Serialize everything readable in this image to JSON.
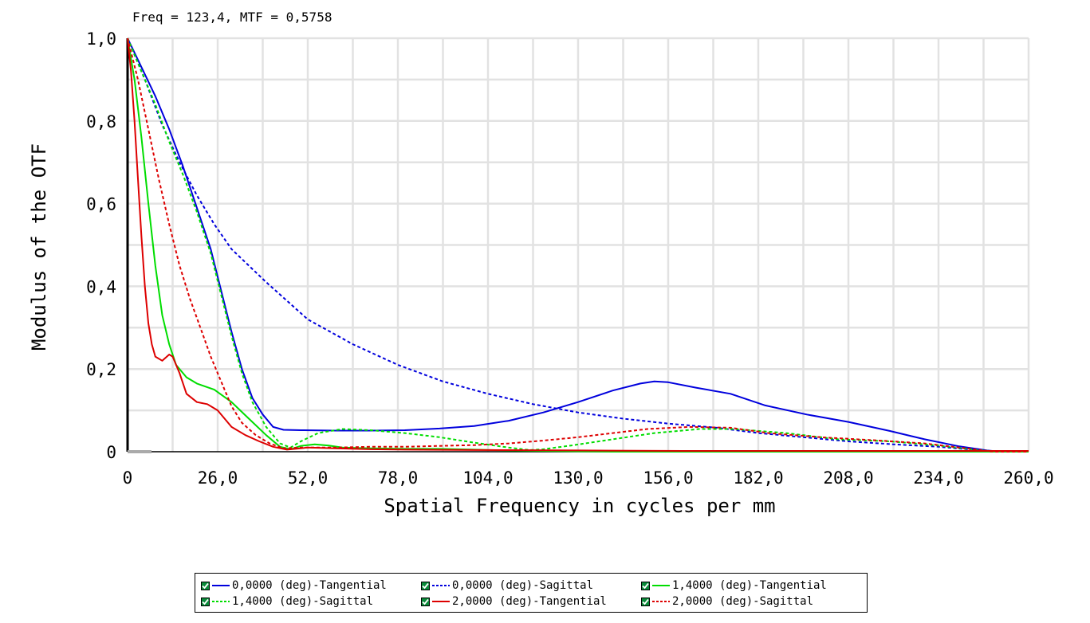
{
  "cursor_readout": "Freq = 123,4, MTF = 0,5758",
  "chart_data": {
    "type": "line",
    "title": "",
    "xlabel": "Spatial Frequency in cycles per mm",
    "ylabel": "Modulus of the OTF",
    "xlim": [
      0,
      260
    ],
    "ylim": [
      0,
      1
    ],
    "x_ticks": [
      0,
      26,
      52,
      78,
      104,
      130,
      156,
      182,
      208,
      234,
      260
    ],
    "x_tick_labels": [
      "0",
      "26,0",
      "52,0",
      "78,0",
      "104,0",
      "130,0",
      "156,0",
      "182,0",
      "208,0",
      "234,0",
      "260,0"
    ],
    "y_ticks": [
      0,
      0.2,
      0.4,
      0.6,
      0.8,
      1.0
    ],
    "y_tick_labels": [
      "0",
      "0,2",
      "0,4",
      "0,6",
      "0,8",
      "1,0"
    ],
    "grid": true,
    "legend_position": "bottom",
    "series": [
      {
        "name": "0,0000 (deg)-Tangential",
        "color": "#0000dd",
        "dash": false,
        "points": [
          [
            0,
            1.0
          ],
          [
            4,
            0.93
          ],
          [
            8,
            0.86
          ],
          [
            12,
            0.78
          ],
          [
            16,
            0.69
          ],
          [
            20,
            0.59
          ],
          [
            24,
            0.49
          ],
          [
            27,
            0.39
          ],
          [
            30,
            0.29
          ],
          [
            33,
            0.2
          ],
          [
            36,
            0.13
          ],
          [
            39,
            0.09
          ],
          [
            42,
            0.06
          ],
          [
            45,
            0.053
          ],
          [
            50,
            0.052
          ],
          [
            60,
            0.051
          ],
          [
            70,
            0.051
          ],
          [
            80,
            0.052
          ],
          [
            90,
            0.056
          ],
          [
            100,
            0.062
          ],
          [
            110,
            0.075
          ],
          [
            120,
            0.095
          ],
          [
            130,
            0.12
          ],
          [
            140,
            0.148
          ],
          [
            148,
            0.165
          ],
          [
            152,
            0.17
          ],
          [
            156,
            0.168
          ],
          [
            164,
            0.155
          ],
          [
            174,
            0.14
          ],
          [
            184,
            0.112
          ],
          [
            196,
            0.09
          ],
          [
            208,
            0.072
          ],
          [
            220,
            0.05
          ],
          [
            230,
            0.03
          ],
          [
            240,
            0.013
          ],
          [
            248,
            0.003
          ],
          [
            252,
            0
          ],
          [
            260,
            0
          ]
        ]
      },
      {
        "name": "0,0000 (deg)-Sagittal",
        "color": "#0000dd",
        "dash": true,
        "points": [
          [
            0,
            1.0
          ],
          [
            5,
            0.9
          ],
          [
            10,
            0.79
          ],
          [
            15,
            0.7
          ],
          [
            20,
            0.62
          ],
          [
            25,
            0.55
          ],
          [
            30,
            0.49
          ],
          [
            40,
            0.41
          ],
          [
            52,
            0.32
          ],
          [
            65,
            0.26
          ],
          [
            78,
            0.21
          ],
          [
            91,
            0.17
          ],
          [
            104,
            0.14
          ],
          [
            117,
            0.115
          ],
          [
            130,
            0.095
          ],
          [
            143,
            0.08
          ],
          [
            156,
            0.068
          ],
          [
            170,
            0.058
          ],
          [
            182,
            0.045
          ],
          [
            195,
            0.035
          ],
          [
            208,
            0.025
          ],
          [
            221,
            0.018
          ],
          [
            234,
            0.012
          ],
          [
            245,
            0.004
          ],
          [
            250,
            0
          ],
          [
            260,
            0
          ]
        ]
      },
      {
        "name": "1,4000 (deg)-Tangential",
        "color": "#00dd00",
        "dash": false,
        "points": [
          [
            0,
            1.0
          ],
          [
            2,
            0.9
          ],
          [
            4,
            0.76
          ],
          [
            6,
            0.6
          ],
          [
            8,
            0.45
          ],
          [
            10,
            0.33
          ],
          [
            12,
            0.26
          ],
          [
            14,
            0.21
          ],
          [
            17,
            0.18
          ],
          [
            20,
            0.165
          ],
          [
            25,
            0.15
          ],
          [
            30,
            0.12
          ],
          [
            35,
            0.08
          ],
          [
            40,
            0.04
          ],
          [
            44,
            0.012
          ],
          [
            47,
            0.006
          ],
          [
            50,
            0.014
          ],
          [
            54,
            0.018
          ],
          [
            58,
            0.015
          ],
          [
            62,
            0.01
          ],
          [
            70,
            0.008
          ],
          [
            80,
            0.007
          ],
          [
            90,
            0.007
          ],
          [
            100,
            0.005
          ],
          [
            110,
            0.003
          ],
          [
            120,
            0.002
          ],
          [
            130,
            0.001
          ],
          [
            140,
            0
          ],
          [
            160,
            0
          ],
          [
            260,
            0
          ]
        ]
      },
      {
        "name": "1,4000 (deg)-Sagittal",
        "color": "#00dd00",
        "dash": true,
        "points": [
          [
            0,
            1.0
          ],
          [
            4,
            0.92
          ],
          [
            8,
            0.84
          ],
          [
            12,
            0.75
          ],
          [
            16,
            0.67
          ],
          [
            20,
            0.58
          ],
          [
            24,
            0.48
          ],
          [
            27,
            0.38
          ],
          [
            30,
            0.28
          ],
          [
            33,
            0.19
          ],
          [
            36,
            0.12
          ],
          [
            40,
            0.06
          ],
          [
            44,
            0.02
          ],
          [
            47,
            0.01
          ],
          [
            50,
            0.025
          ],
          [
            55,
            0.045
          ],
          [
            62,
            0.055
          ],
          [
            70,
            0.052
          ],
          [
            80,
            0.045
          ],
          [
            90,
            0.035
          ],
          [
            100,
            0.022
          ],
          [
            110,
            0.01
          ],
          [
            116,
            0.004
          ],
          [
            120,
            0.006
          ],
          [
            128,
            0.015
          ],
          [
            140,
            0.03
          ],
          [
            152,
            0.045
          ],
          [
            165,
            0.055
          ],
          [
            175,
            0.055
          ],
          [
            190,
            0.045
          ],
          [
            205,
            0.03
          ],
          [
            220,
            0.025
          ],
          [
            234,
            0.015
          ],
          [
            245,
            0.004
          ],
          [
            252,
            0
          ],
          [
            260,
            0
          ]
        ]
      },
      {
        "name": "2,0000 (deg)-Tangential",
        "color": "#dd0000",
        "dash": false,
        "points": [
          [
            0,
            1.0
          ],
          [
            1,
            0.92
          ],
          [
            2,
            0.8
          ],
          [
            3,
            0.66
          ],
          [
            4,
            0.52
          ],
          [
            5,
            0.4
          ],
          [
            6,
            0.31
          ],
          [
            7,
            0.26
          ],
          [
            8,
            0.23
          ],
          [
            10,
            0.22
          ],
          [
            12,
            0.235
          ],
          [
            13,
            0.23
          ],
          [
            15,
            0.19
          ],
          [
            17,
            0.14
          ],
          [
            20,
            0.12
          ],
          [
            23,
            0.115
          ],
          [
            26,
            0.1
          ],
          [
            30,
            0.06
          ],
          [
            34,
            0.04
          ],
          [
            38,
            0.025
          ],
          [
            42,
            0.012
          ],
          [
            46,
            0.005
          ],
          [
            52,
            0.01
          ],
          [
            60,
            0.008
          ],
          [
            70,
            0.006
          ],
          [
            80,
            0.005
          ],
          [
            100,
            0.004
          ],
          [
            130,
            0.003
          ],
          [
            160,
            0.002
          ],
          [
            200,
            0.002
          ],
          [
            240,
            0.002
          ],
          [
            260,
            0.002
          ]
        ]
      },
      {
        "name": "2,0000 (deg)-Sagittal",
        "color": "#dd0000",
        "dash": true,
        "points": [
          [
            0,
            1.0
          ],
          [
            3,
            0.9
          ],
          [
            6,
            0.78
          ],
          [
            9,
            0.66
          ],
          [
            12,
            0.55
          ],
          [
            15,
            0.45
          ],
          [
            18,
            0.37
          ],
          [
            21,
            0.3
          ],
          [
            24,
            0.23
          ],
          [
            27,
            0.17
          ],
          [
            30,
            0.11
          ],
          [
            33,
            0.07
          ],
          [
            37,
            0.04
          ],
          [
            41,
            0.02
          ],
          [
            45,
            0.008
          ],
          [
            50,
            0.01
          ],
          [
            60,
            0.01
          ],
          [
            70,
            0.012
          ],
          [
            80,
            0.012
          ],
          [
            90,
            0.014
          ],
          [
            100,
            0.016
          ],
          [
            110,
            0.02
          ],
          [
            120,
            0.027
          ],
          [
            130,
            0.035
          ],
          [
            140,
            0.045
          ],
          [
            150,
            0.055
          ],
          [
            162,
            0.06
          ],
          [
            174,
            0.058
          ],
          [
            185,
            0.045
          ],
          [
            200,
            0.035
          ],
          [
            215,
            0.028
          ],
          [
            230,
            0.02
          ],
          [
            242,
            0.008
          ],
          [
            250,
            0
          ],
          [
            260,
            0
          ]
        ]
      }
    ]
  },
  "legend": {
    "items": [
      {
        "label": "0,0000 (deg)-Tangential"
      },
      {
        "label": "0,0000 (deg)-Sagittal"
      },
      {
        "label": "1,4000 (deg)-Tangential"
      },
      {
        "label": "1,4000 (deg)-Sagittal"
      },
      {
        "label": "2,0000 (deg)-Tangential"
      },
      {
        "label": "2,0000 (deg)-Sagittal"
      }
    ]
  }
}
